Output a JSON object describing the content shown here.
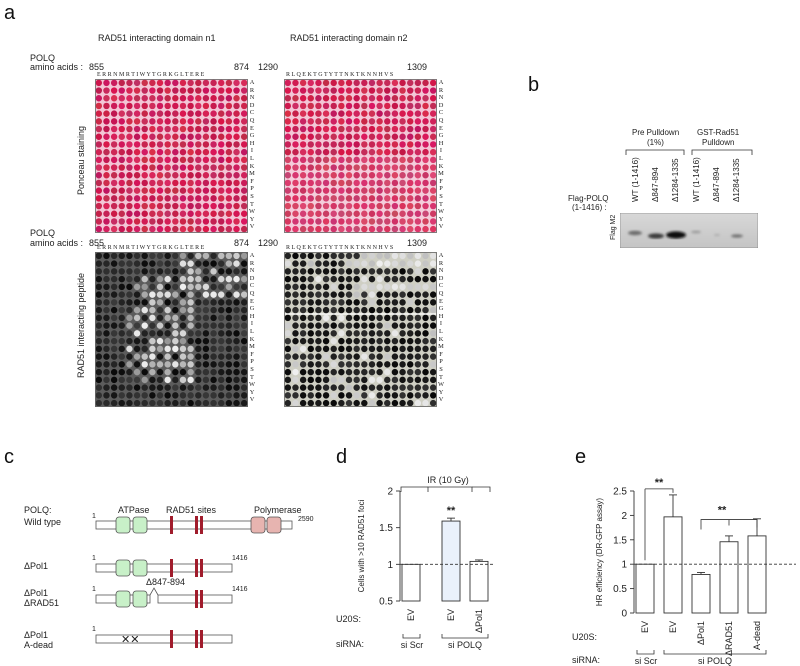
{
  "panel_a": {
    "label": "a",
    "domain_n1_title": "RAD51 interacting domain n1",
    "domain_n2_title": "RAD51 interacting domain n2",
    "polq_label": "POLQ",
    "aa_label": "amino acids :",
    "n1_start": "855",
    "n1_end": "874",
    "n2_start": "1290",
    "n2_end": "1309",
    "n1_sequence": "E R R N M R T I W Y T G R K G L T E R E",
    "n2_sequence": "R L Q E K T G T Y T T N K T K N N H V S",
    "row_aas": [
      "A",
      "R",
      "N",
      "D",
      "C",
      "Q",
      "E",
      "G",
      "H",
      "I",
      "L",
      "K",
      "M",
      "F",
      "P",
      "S",
      "T",
      "W",
      "Y",
      "V"
    ],
    "top_side_label": "Ponceau staining",
    "bottom_side_label": "RAD51 interacting peptide"
  },
  "panel_b": {
    "label": "b",
    "group1_title_line1": "Pre Pulldown",
    "group1_title_line2": "(1%)",
    "group2_title_line1": "GST-Rad51",
    "group2_title_line2": "Pulldown",
    "lanes": [
      "WT (1-1416)",
      "Δ847-894",
      "Δ1284-1335",
      "WT (1-1416)",
      "Δ847-894",
      "Δ1284-1335"
    ],
    "row_label_line1": "Flag-POLQ",
    "row_label_line2": "(1-1416) :",
    "blot_label": "Flag M2"
  },
  "panel_c": {
    "label": "c",
    "polq_label": "POLQ:",
    "domain_atpase": "ATPase",
    "domain_rad51": "RAD51 sites",
    "domain_polymerase": "Polymerase",
    "constructs": [
      {
        "name_line1": "Wild type",
        "name_line2": "",
        "start": "1",
        "end": "2590"
      },
      {
        "name_line1": "ΔPol1",
        "name_line2": "",
        "start": "1",
        "end": "1416"
      },
      {
        "name_line1": "ΔPol1",
        "name_line2": "ΔRAD51",
        "start": "1",
        "end": "1416"
      },
      {
        "name_line1": "ΔPol1",
        "name_line2": "A-dead",
        "start": "1",
        "end": ""
      }
    ],
    "deletion_label": "Δ847-894",
    "colors": {
      "atpase": "#c8f0c8",
      "rad51": "#a01c2c",
      "polymerase": "#e7b4b0"
    }
  },
  "panel_d": {
    "label": "d",
    "chart_data": {
      "type": "bar",
      "title": "IR (10 Gy)",
      "ylabel": "Cells with >10 RAD51 foci",
      "ylim": [
        0.5,
        2
      ],
      "yticks": [
        "0.5",
        "1",
        "1.5",
        "2"
      ],
      "categories": [
        "EV",
        "EV",
        "ΔPol1"
      ],
      "values": [
        1.0,
        1.59,
        1.04
      ],
      "errors": [
        0,
        0.04,
        0.02
      ],
      "significance": [
        "",
        "**",
        ""
      ],
      "reference_line": 1,
      "u20s_label": "U20S:",
      "sirna_label": "siRNA:",
      "sirna_groups": [
        "si Scr",
        "si POLQ"
      ],
      "bar_fills": [
        "#ffffff",
        "#eaf1fb",
        "#ffffff"
      ]
    }
  },
  "panel_e": {
    "label": "e",
    "chart_data": {
      "type": "bar",
      "ylabel": "HR efficiency (DR-GFP assay)",
      "ylim": [
        0,
        2.5
      ],
      "yticks": [
        "0",
        "0.5",
        "1",
        "1.5",
        "2",
        "2.5"
      ],
      "categories": [
        "EV",
        "EV",
        "ΔPol1",
        "ΔRAD51",
        "A-dead"
      ],
      "values": [
        1.0,
        1.97,
        0.79,
        1.46,
        1.58
      ],
      "errors": [
        0,
        0.45,
        0.04,
        0.12,
        0.35
      ],
      "significance_1": "**",
      "significance_2": "**",
      "reference_line": 1,
      "u20s_label": "U20S:",
      "sirna_label": "siRNA:",
      "sirna_groups": [
        "si Scr",
        "si POLQ"
      ]
    }
  }
}
